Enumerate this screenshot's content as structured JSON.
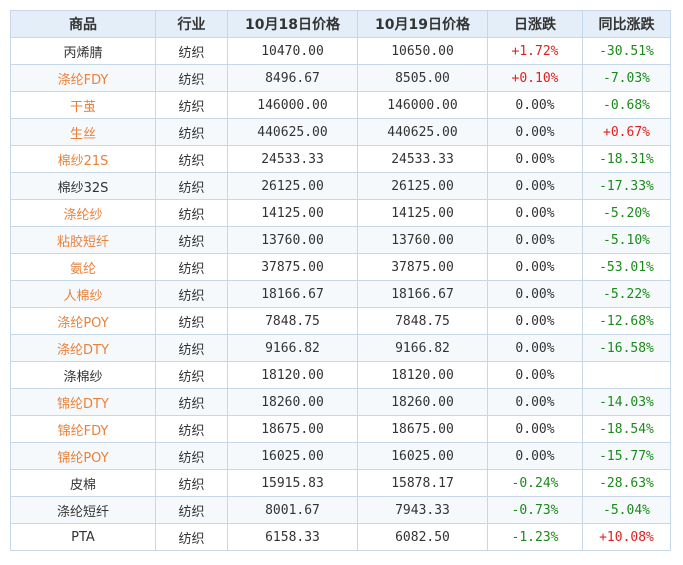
{
  "headers": [
    "商品",
    "行业",
    "10月18日价格",
    "10月19日价格",
    "日涨跌",
    "同比涨跌"
  ],
  "colors": {
    "link": "#e8823a",
    "up": "#e02020",
    "down": "#1a8a1a",
    "header_bg": "#e4eef8",
    "border": "#c6d7e8"
  },
  "rows": [
    {
      "name": "丙烯腈",
      "link": false,
      "industry": "纺织",
      "p1": "10470.00",
      "p2": "10650.00",
      "daily": "+1.72%",
      "daily_dir": "up",
      "yoy": "-30.51%",
      "yoy_dir": "down"
    },
    {
      "name": "涤纶FDY",
      "link": true,
      "industry": "纺织",
      "p1": "8496.67",
      "p2": "8505.00",
      "daily": "+0.10%",
      "daily_dir": "up",
      "yoy": "-7.03%",
      "yoy_dir": "down"
    },
    {
      "name": "干茧",
      "link": true,
      "industry": "纺织",
      "p1": "146000.00",
      "p2": "146000.00",
      "daily": "0.00%",
      "daily_dir": "flat",
      "yoy": "-0.68%",
      "yoy_dir": "down"
    },
    {
      "name": "生丝",
      "link": true,
      "industry": "纺织",
      "p1": "440625.00",
      "p2": "440625.00",
      "daily": "0.00%",
      "daily_dir": "flat",
      "yoy": "+0.67%",
      "yoy_dir": "up"
    },
    {
      "name": "棉纱21S",
      "link": true,
      "industry": "纺织",
      "p1": "24533.33",
      "p2": "24533.33",
      "daily": "0.00%",
      "daily_dir": "flat",
      "yoy": "-18.31%",
      "yoy_dir": "down"
    },
    {
      "name": "棉纱32S",
      "link": false,
      "industry": "纺织",
      "p1": "26125.00",
      "p2": "26125.00",
      "daily": "0.00%",
      "daily_dir": "flat",
      "yoy": "-17.33%",
      "yoy_dir": "down"
    },
    {
      "name": "涤纶纱",
      "link": true,
      "industry": "纺织",
      "p1": "14125.00",
      "p2": "14125.00",
      "daily": "0.00%",
      "daily_dir": "flat",
      "yoy": "-5.20%",
      "yoy_dir": "down"
    },
    {
      "name": "粘胶短纤",
      "link": true,
      "industry": "纺织",
      "p1": "13760.00",
      "p2": "13760.00",
      "daily": "0.00%",
      "daily_dir": "flat",
      "yoy": "-5.10%",
      "yoy_dir": "down"
    },
    {
      "name": "氨纶",
      "link": true,
      "industry": "纺织",
      "p1": "37875.00",
      "p2": "37875.00",
      "daily": "0.00%",
      "daily_dir": "flat",
      "yoy": "-53.01%",
      "yoy_dir": "down"
    },
    {
      "name": "人棉纱",
      "link": true,
      "industry": "纺织",
      "p1": "18166.67",
      "p2": "18166.67",
      "daily": "0.00%",
      "daily_dir": "flat",
      "yoy": "-5.22%",
      "yoy_dir": "down"
    },
    {
      "name": "涤纶POY",
      "link": true,
      "industry": "纺织",
      "p1": "7848.75",
      "p2": "7848.75",
      "daily": "0.00%",
      "daily_dir": "flat",
      "yoy": "-12.68%",
      "yoy_dir": "down"
    },
    {
      "name": "涤纶DTY",
      "link": true,
      "industry": "纺织",
      "p1": "9166.82",
      "p2": "9166.82",
      "daily": "0.00%",
      "daily_dir": "flat",
      "yoy": "-16.58%",
      "yoy_dir": "down"
    },
    {
      "name": "涤棉纱",
      "link": false,
      "industry": "纺织",
      "p1": "18120.00",
      "p2": "18120.00",
      "daily": "0.00%",
      "daily_dir": "flat",
      "yoy": "",
      "yoy_dir": "flat"
    },
    {
      "name": "锦纶DTY",
      "link": true,
      "industry": "纺织",
      "p1": "18260.00",
      "p2": "18260.00",
      "daily": "0.00%",
      "daily_dir": "flat",
      "yoy": "-14.03%",
      "yoy_dir": "down"
    },
    {
      "name": "锦纶FDY",
      "link": true,
      "industry": "纺织",
      "p1": "18675.00",
      "p2": "18675.00",
      "daily": "0.00%",
      "daily_dir": "flat",
      "yoy": "-18.54%",
      "yoy_dir": "down"
    },
    {
      "name": "锦纶POY",
      "link": true,
      "industry": "纺织",
      "p1": "16025.00",
      "p2": "16025.00",
      "daily": "0.00%",
      "daily_dir": "flat",
      "yoy": "-15.77%",
      "yoy_dir": "down"
    },
    {
      "name": "皮棉",
      "link": false,
      "industry": "纺织",
      "p1": "15915.83",
      "p2": "15878.17",
      "daily": "-0.24%",
      "daily_dir": "down",
      "yoy": "-28.63%",
      "yoy_dir": "down"
    },
    {
      "name": "涤纶短纤",
      "link": false,
      "industry": "纺织",
      "p1": "8001.67",
      "p2": "7943.33",
      "daily": "-0.73%",
      "daily_dir": "down",
      "yoy": "-5.04%",
      "yoy_dir": "down"
    },
    {
      "name": "PTA",
      "link": false,
      "industry": "纺织",
      "p1": "6158.33",
      "p2": "6082.50",
      "daily": "-1.23%",
      "daily_dir": "down",
      "yoy": "+10.08%",
      "yoy_dir": "up"
    }
  ]
}
